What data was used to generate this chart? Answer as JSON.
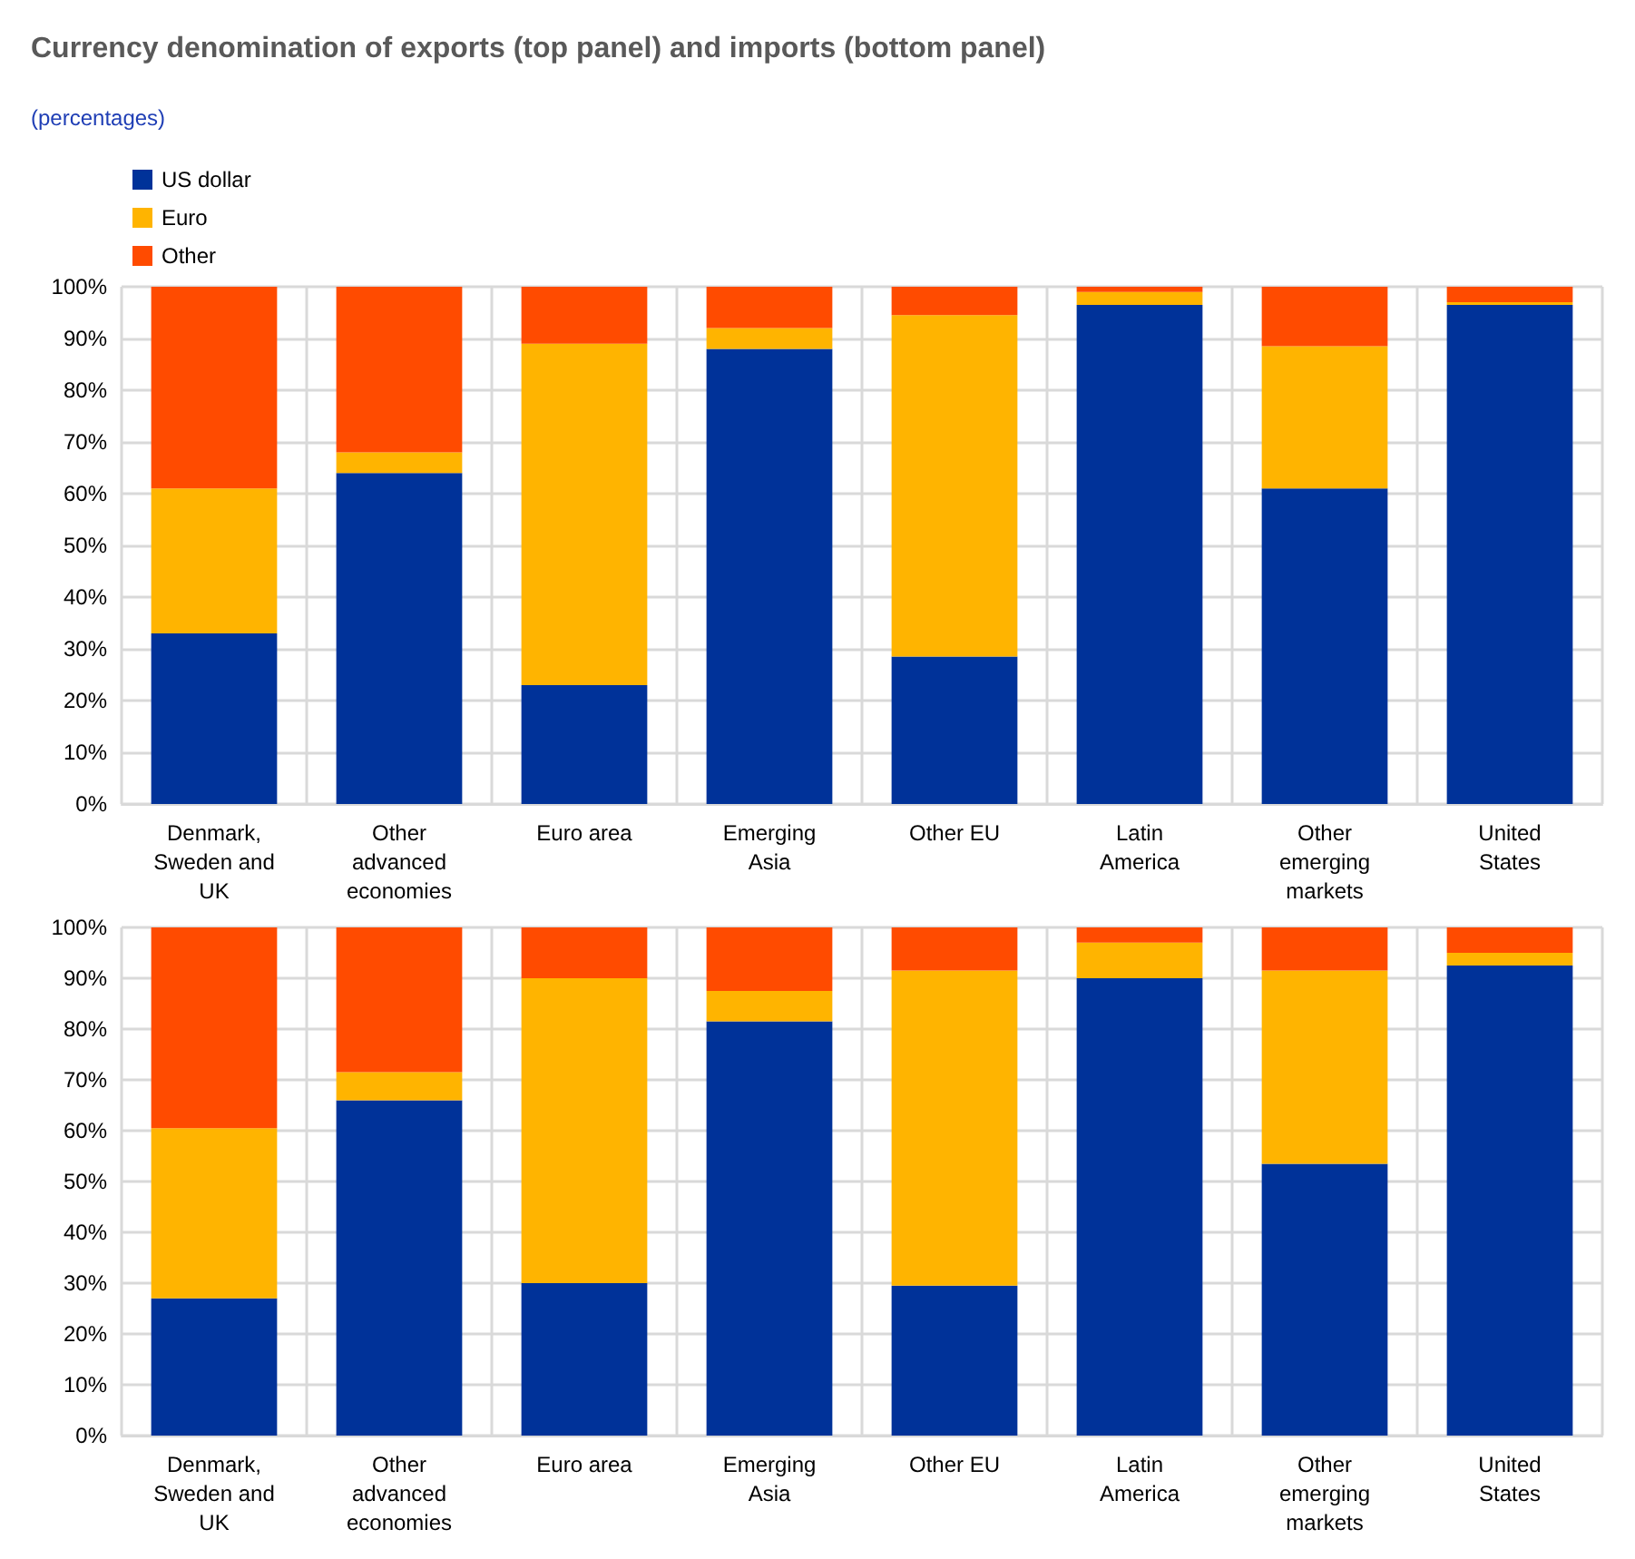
{
  "chart_data": [
    {
      "type": "bar",
      "title": "Currency denomination of exports (top panel) and imports (bottom panel)",
      "subtitle": "(percentages)",
      "stacked": true,
      "grid": true,
      "legend": "top left",
      "categories": [
        "Denmark, Sweden and UK",
        "Other advanced economies",
        "Euro area",
        "Emerging Asia",
        "Other EU",
        "Latin America",
        "Other emerging markets",
        "United States"
      ],
      "series": [
        {
          "name": "US dollar",
          "color": "#003299",
          "values": [
            33,
            64,
            23,
            88,
            28.5,
            96.5,
            61,
            96.5
          ]
        },
        {
          "name": "Euro",
          "color": "#ffb400",
          "values": [
            28,
            4,
            66,
            4,
            66,
            2.5,
            27.5,
            0.5
          ]
        },
        {
          "name": "Other",
          "color": "#ff4b00",
          "values": [
            39,
            32,
            11,
            8,
            5.5,
            1,
            11.5,
            3
          ]
        }
      ],
      "ylim": [
        0,
        100
      ],
      "yticks": [
        {
          "value": 0,
          "label": "0%"
        },
        {
          "value": 10,
          "label": "10%"
        },
        {
          "value": 20,
          "label": "20%"
        },
        {
          "value": 30,
          "label": "30%"
        },
        {
          "value": 40,
          "label": "40%"
        },
        {
          "value": 50,
          "label": "50%"
        },
        {
          "value": 60,
          "label": "60%"
        },
        {
          "value": 70,
          "label": "70%"
        },
        {
          "value": 80,
          "label": "80%"
        },
        {
          "value": 90,
          "label": "90%"
        },
        {
          "value": 100,
          "label": "100%"
        }
      ]
    },
    {
      "type": "bar",
      "stacked": true,
      "grid": true,
      "categories": [
        "Denmark, Sweden and UK",
        "Other advanced economies",
        "Euro area",
        "Emerging Asia",
        "Other EU",
        "Latin America",
        "Other emerging markets",
        "United States"
      ],
      "series": [
        {
          "color": "#003299",
          "values": [
            27,
            66,
            30,
            81.5,
            29.5,
            90,
            53.5,
            92.5
          ]
        },
        {
          "color": "#ffb400",
          "values": [
            33.5,
            5.5,
            60,
            6,
            62,
            7,
            38,
            2.5
          ]
        },
        {
          "color": "#ff4b00",
          "values": [
            39.5,
            28.5,
            10,
            12.5,
            8.5,
            3,
            8.5,
            5
          ]
        }
      ],
      "ylim": [
        0,
        100
      ],
      "yticks": [
        {
          "value": 0,
          "label": "0%"
        },
        {
          "value": 10,
          "label": "10%"
        },
        {
          "value": 20,
          "label": "20%"
        },
        {
          "value": 30,
          "label": "30%"
        },
        {
          "value": 40,
          "label": "40%"
        },
        {
          "value": 50,
          "label": "50%"
        },
        {
          "value": 60,
          "label": "60%"
        },
        {
          "value": 70,
          "label": "70%"
        },
        {
          "value": 80,
          "label": "80%"
        },
        {
          "value": 90,
          "label": "90%"
        },
        {
          "value": 100,
          "label": "100%"
        }
      ]
    }
  ]
}
